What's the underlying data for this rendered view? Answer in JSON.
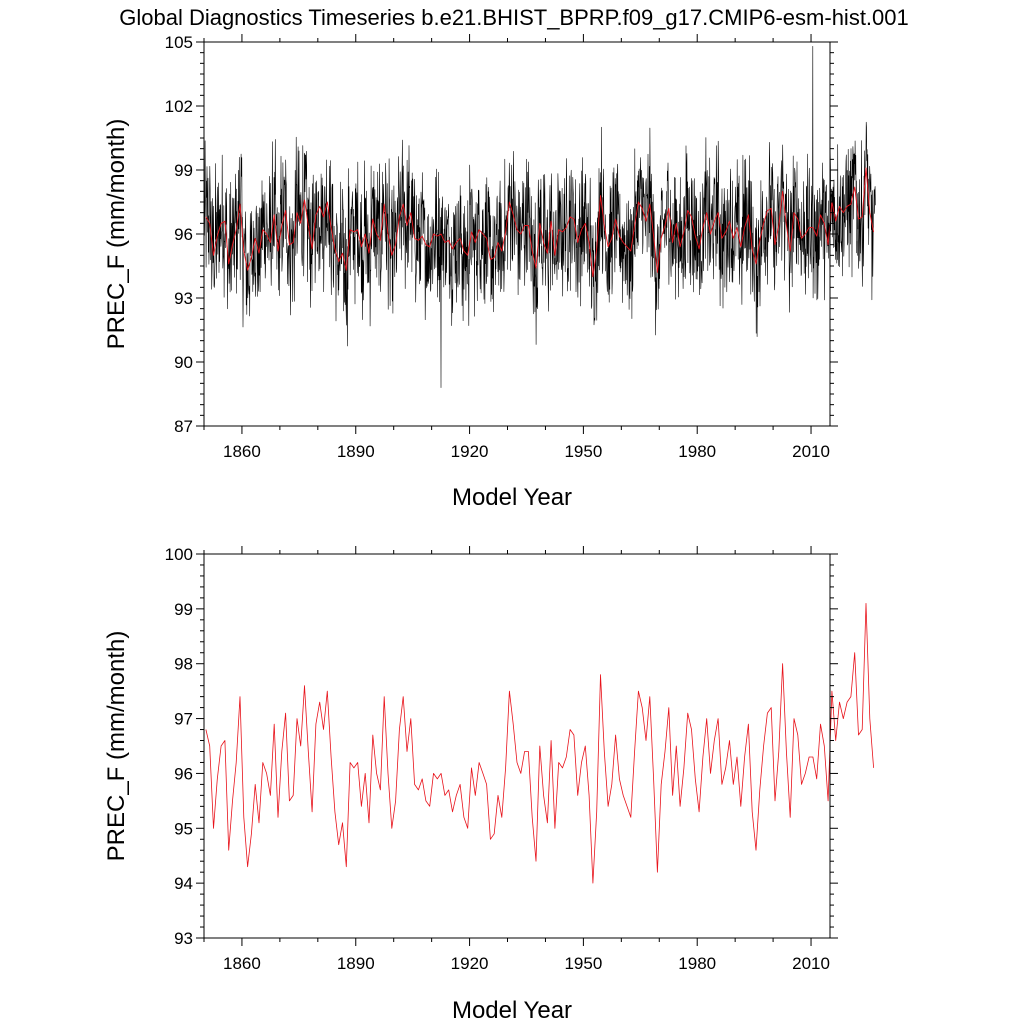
{
  "title": "Global Diagnostics Timeseries b.e21.BHIST_BPRP.f09_g17.CMIP6-esm-hist.001",
  "colors": {
    "monthly": "#000000",
    "annual": "#e8131b",
    "frame": "#000000"
  },
  "chart_data": [
    {
      "type": "line",
      "xlabel": "Model Year",
      "ylabel": "PREC_F (mm/month)",
      "xlim": [
        1850,
        2015
      ],
      "ylim": [
        87,
        105
      ],
      "xticks": [
        1860,
        1890,
        1920,
        1950,
        1980,
        2010
      ],
      "yticks": [
        87,
        90,
        93,
        96,
        99,
        102,
        105
      ],
      "grid": false,
      "series": [
        {
          "key": "monthly",
          "resolution": "monthly",
          "color": "#000000",
          "note_shown": "thin black monthly trace"
        },
        {
          "key": "annual",
          "resolution": "annual",
          "color": "#e8131b"
        }
      ],
      "monthly_envelope_extremes": {
        "max": {
          "x": 2010.5,
          "y": 104.8
        },
        "min": {
          "x": 1912.5,
          "y": 88.8
        }
      }
    },
    {
      "type": "line",
      "xlabel": "Model Year",
      "ylabel": "PREC_F (mm/month)",
      "xlim": [
        1850,
        2015
      ],
      "ylim": [
        93,
        100
      ],
      "xticks": [
        1860,
        1890,
        1920,
        1950,
        1980,
        2010
      ],
      "yticks": [
        93,
        94,
        95,
        96,
        97,
        98,
        99,
        100
      ],
      "grid": false,
      "series": [
        {
          "key": "annual",
          "resolution": "annual",
          "color": "#e8131b"
        }
      ]
    }
  ],
  "annual_series": {
    "x_start": 1850,
    "x_step": 1,
    "values": [
      96.8,
      96.5,
      95.0,
      95.9,
      96.5,
      96.6,
      94.6,
      95.5,
      96.2,
      97.4,
      95.2,
      94.3,
      94.9,
      95.8,
      95.1,
      96.2,
      96.0,
      95.6,
      96.9,
      95.2,
      96.4,
      97.1,
      95.5,
      95.6,
      97.0,
      96.5,
      97.6,
      96.4,
      95.3,
      96.9,
      97.3,
      96.8,
      97.5,
      96.3,
      95.3,
      94.7,
      95.1,
      94.3,
      96.2,
      96.1,
      96.2,
      95.4,
      96.0,
      95.1,
      96.7,
      96.0,
      95.7,
      97.4,
      96.0,
      95.0,
      95.5,
      96.8,
      97.4,
      96.4,
      97.0,
      95.8,
      95.7,
      95.9,
      95.5,
      95.4,
      96.0,
      95.9,
      96.0,
      95.6,
      95.7,
      95.3,
      95.6,
      95.8,
      95.2,
      95.0,
      96.1,
      95.6,
      96.2,
      96.0,
      95.8,
      94.8,
      94.9,
      95.6,
      95.2,
      96.1,
      97.5,
      96.9,
      96.2,
      96.0,
      96.4,
      96.4,
      95.2,
      94.4,
      96.5,
      95.6,
      95.1,
      96.6,
      95.0,
      96.2,
      96.1,
      96.3,
      96.8,
      96.7,
      95.6,
      96.2,
      96.5,
      95.6,
      94.0,
      95.3,
      97.8,
      96.4,
      95.4,
      95.8,
      96.7,
      95.9,
      95.6,
      95.4,
      95.2,
      96.4,
      97.5,
      97.2,
      96.6,
      97.4,
      95.9,
      94.2,
      95.8,
      96.4,
      97.2,
      95.6,
      96.5,
      95.4,
      96.1,
      97.1,
      96.8,
      95.9,
      95.3,
      96.3,
      97.0,
      96.0,
      96.6,
      97.0,
      95.8,
      96.1,
      96.6,
      95.8,
      96.3,
      95.4,
      96.3,
      96.9,
      95.3,
      94.6,
      95.7,
      96.5,
      97.1,
      97.2,
      95.5,
      96.4,
      98.0,
      96.4,
      95.2,
      97.0,
      96.7,
      95.8,
      96.0,
      96.3,
      96.3,
      95.9,
      96.9,
      96.5,
      95.5,
      97.5,
      96.6,
      97.3,
      97.0,
      97.3,
      97.4,
      98.2,
      96.7,
      96.8,
      99.1,
      97.0,
      96.1
    ]
  }
}
